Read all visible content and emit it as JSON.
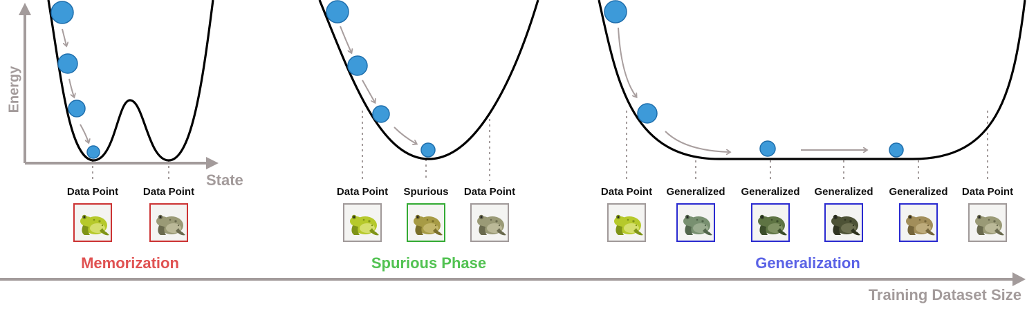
{
  "colors": {
    "axis": "#a39b9b",
    "ball_fill": "#3d9ad9",
    "ball_stroke": "#1f6fad",
    "arrow": "#a89e9e",
    "memorization": "#e05252",
    "spurious": "#52c252",
    "generalization": "#5a62e6",
    "frame_data_mem": "#cc3333",
    "frame_data": "#a09999",
    "frame_spurious": "#33aa33",
    "frame_generalized": "#2a2ad0"
  },
  "axes": {
    "energy_label": "Energy",
    "state_label": "State",
    "dataset_label": "Training Dataset Size"
  },
  "panels": [
    {
      "id": "memorization",
      "title": "Memorization",
      "labels": [
        "Data Point",
        "Data Point"
      ],
      "images": [
        {
          "kind": "data-point",
          "frog": "green"
        },
        {
          "kind": "data-point",
          "frog": "toad"
        }
      ]
    },
    {
      "id": "spurious",
      "title": "Spurious Phase",
      "labels": [
        "Data Point",
        "Spurious",
        "Data Point"
      ],
      "images": [
        {
          "kind": "data-point",
          "frog": "green"
        },
        {
          "kind": "spurious",
          "frog": "olive"
        },
        {
          "kind": "data-point",
          "frog": "toad"
        }
      ]
    },
    {
      "id": "generalization",
      "title": "Generalization",
      "labels": [
        "Data Point",
        "Generalized",
        "Generalized",
        "Generalized",
        "Generalized",
        "Data Point"
      ],
      "images": [
        {
          "kind": "data-point",
          "frog": "green"
        },
        {
          "kind": "generalized",
          "frog": "teal"
        },
        {
          "kind": "generalized",
          "frog": "dark-green"
        },
        {
          "kind": "generalized",
          "frog": "dark"
        },
        {
          "kind": "generalized",
          "frog": "tan"
        },
        {
          "kind": "data-point",
          "frog": "toad"
        }
      ]
    }
  ],
  "frog_colors": {
    "green": {
      "body": "#b6c92b",
      "shade": "#7f9418",
      "belly": "#e2e88a"
    },
    "toad": {
      "body": "#9a9a76",
      "shade": "#6a6a4e",
      "belly": "#c9c6a6"
    },
    "olive": {
      "body": "#a79b45",
      "shade": "#7a6f2a",
      "belly": "#cfc27a"
    },
    "teal": {
      "body": "#789070",
      "shade": "#52664c",
      "belly": "#a8b89c"
    },
    "dark-green": {
      "body": "#5e7443",
      "shade": "#3c4e2a",
      "belly": "#8ea070"
    },
    "dark": {
      "body": "#4d5236",
      "shade": "#2f3320",
      "belly": "#7a7e5c"
    },
    "tan": {
      "body": "#a28e5a",
      "shade": "#76663b",
      "belly": "#cbb98a"
    }
  }
}
